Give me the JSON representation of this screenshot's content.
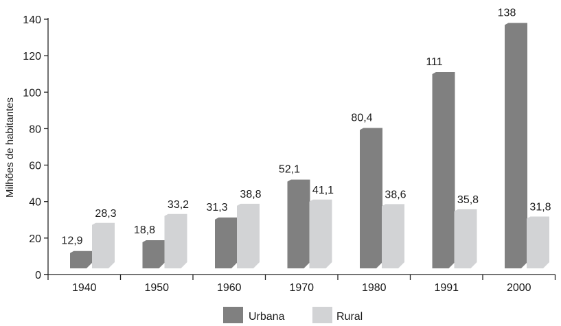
{
  "chart_data": {
    "type": "bar",
    "title": "",
    "xlabel": "",
    "ylabel": "Milhões de habitantes",
    "ylim": [
      0,
      140
    ],
    "yticks": [
      0,
      20,
      40,
      60,
      80,
      100,
      120,
      140
    ],
    "categories": [
      "1940",
      "1950",
      "1960",
      "1970",
      "1980",
      "1991",
      "2000"
    ],
    "series": [
      {
        "name": "Urbana",
        "color": "#808080",
        "values": [
          12.9,
          18.8,
          31.3,
          52.1,
          80.4,
          111,
          138
        ],
        "labels": [
          "12,9",
          "18,8",
          "31,3",
          "52,1",
          "80,4",
          "111",
          "138"
        ]
      },
      {
        "name": "Rural",
        "color": "#d2d3d5",
        "values": [
          28.3,
          33.2,
          38.8,
          41.1,
          38.6,
          35.8,
          31.8
        ],
        "labels": [
          "28,3",
          "33,2",
          "38,8",
          "41,1",
          "38,6",
          "35,8",
          "31,8"
        ]
      }
    ],
    "grid": false,
    "legend_position": "bottom-center"
  }
}
